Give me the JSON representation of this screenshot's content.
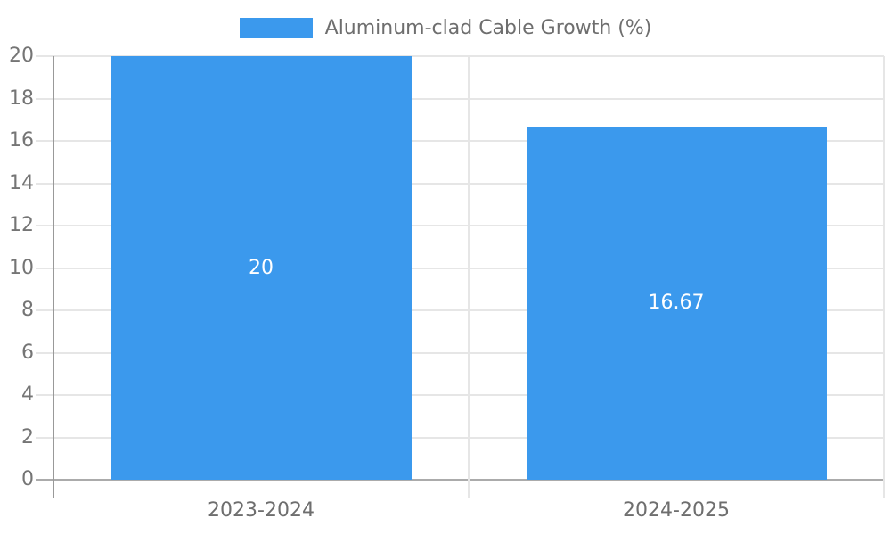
{
  "chart_data": {
    "type": "bar",
    "title": "",
    "legend": {
      "label": "Aluminum-clad Cable Growth (%)",
      "position": "top-center"
    },
    "categories": [
      "2023-2024",
      "2024-2025"
    ],
    "series": [
      {
        "name": "Aluminum-clad Cable Growth (%)",
        "values": [
          20,
          16.67
        ],
        "value_labels": [
          "20",
          "16.67"
        ]
      }
    ],
    "xlabel": "",
    "ylabel": "",
    "ylim": [
      0,
      20
    ],
    "ytick_step": 2,
    "yticks": [
      0,
      2,
      4,
      6,
      8,
      10,
      12,
      14,
      16,
      18,
      20
    ],
    "grid": true,
    "value_label_position": "inside-center",
    "colors": {
      "bar": "#3B99ED",
      "grid": "#e6e6e6",
      "axis": "#999999",
      "baseline": "#ababab",
      "y_tick_text": "#757575",
      "x_tick_text": "#6e6e6e",
      "value_text": "#ffffff",
      "legend_text": "#6e6e6e"
    }
  }
}
